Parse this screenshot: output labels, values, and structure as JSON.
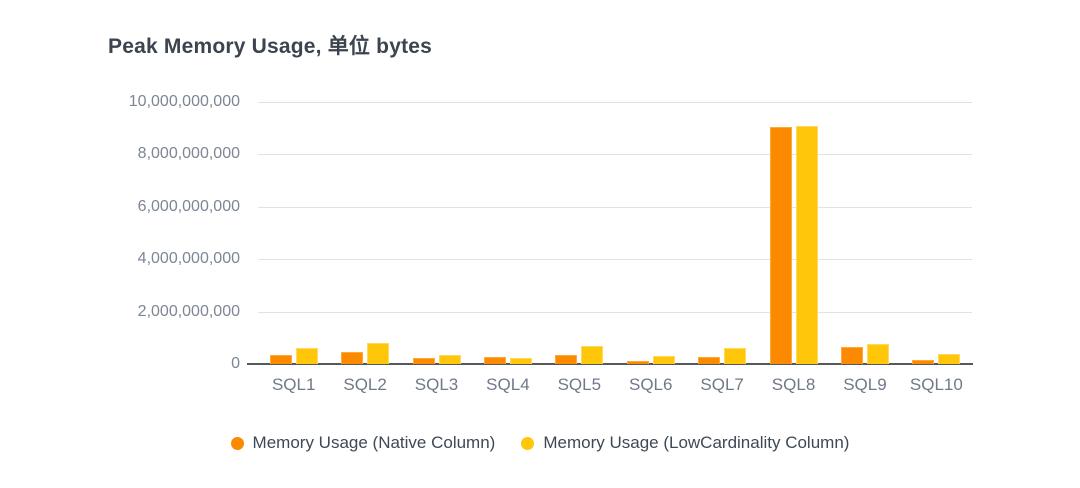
{
  "title": "Peak Memory Usage, 单位 bytes",
  "chart_data": {
    "type": "bar",
    "title": "Peak Memory Usage, 单位 bytes",
    "unit": "bytes",
    "categories": [
      "SQL1",
      "SQL2",
      "SQL3",
      "SQL4",
      "SQL5",
      "SQL6",
      "SQL7",
      "SQL8",
      "SQL9",
      "SQL10"
    ],
    "series": [
      {
        "name": "Memory Usage (Native Column)",
        "key": "native",
        "color": "#FC8A00",
        "border_color": "#FFA937",
        "values": [
          340000000,
          460000000,
          230000000,
          270000000,
          340000000,
          130000000,
          270000000,
          9060000000,
          640000000,
          160000000
        ]
      },
      {
        "name": "Memory Usage (LowCardinality Column)",
        "key": "lowcardinality",
        "color": "#FFC60A",
        "border_color": "#FFD95E",
        "values": [
          610000000,
          790000000,
          360000000,
          240000000,
          700000000,
          320000000,
          600000000,
          9100000000,
          750000000,
          400000000
        ]
      }
    ],
    "ylim": [
      0,
      10000000000
    ],
    "yticks": [
      {
        "value": 10000000000,
        "label": "10,000,000,000"
      },
      {
        "value": 8000000000,
        "label": "8,000,000,000"
      },
      {
        "value": 6000000000,
        "label": "6,000,000,000"
      },
      {
        "value": 4000000000,
        "label": "4,000,000,000"
      },
      {
        "value": 2000000000,
        "label": "2,000,000,000"
      },
      {
        "value": 0,
        "label": "0"
      }
    ],
    "grid": true,
    "legend_position": "bottom",
    "colors": {
      "title_text": "#3c4450",
      "axis_label_text": "#7c8694",
      "x_label_text": "#6f7987",
      "legend_text": "#3f4856",
      "gridline": "#e1e2e4",
      "zero_axis": "#55585c",
      "background": "#ffffff"
    }
  }
}
